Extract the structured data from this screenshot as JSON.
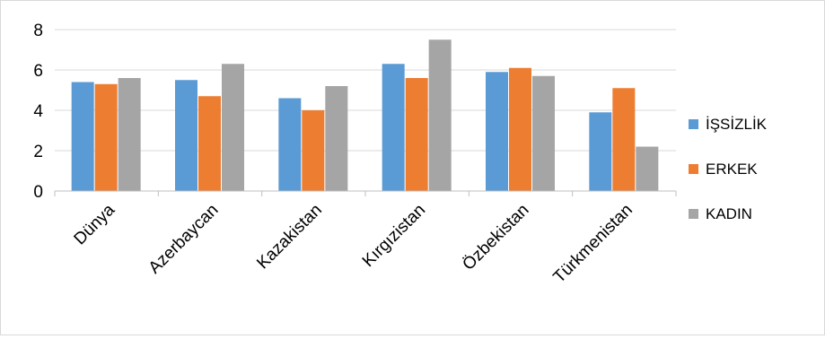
{
  "chart_data": {
    "type": "bar",
    "title": "",
    "xlabel": "",
    "ylabel": "",
    "categories": [
      "Dünya",
      "Azerbaycan",
      "Kazakistan",
      "Kırgızistan",
      "Özbekistan",
      "Türkmenistan"
    ],
    "series": [
      {
        "name": "İŞSİZLİK",
        "color": "#5b9bd5",
        "values": [
          5.4,
          5.5,
          4.6,
          6.3,
          5.9,
          3.9
        ]
      },
      {
        "name": "ERKEK",
        "color": "#ed7d31",
        "values": [
          5.3,
          4.7,
          4.0,
          5.6,
          6.1,
          5.1
        ]
      },
      {
        "name": "KADIN",
        "color": "#a5a5a5",
        "values": [
          5.6,
          6.3,
          5.2,
          7.5,
          5.7,
          2.2
        ]
      }
    ],
    "ylim": [
      0,
      8
    ],
    "yticks": [
      0,
      2,
      4,
      6,
      8
    ],
    "grid": true,
    "legend_position": "right"
  }
}
